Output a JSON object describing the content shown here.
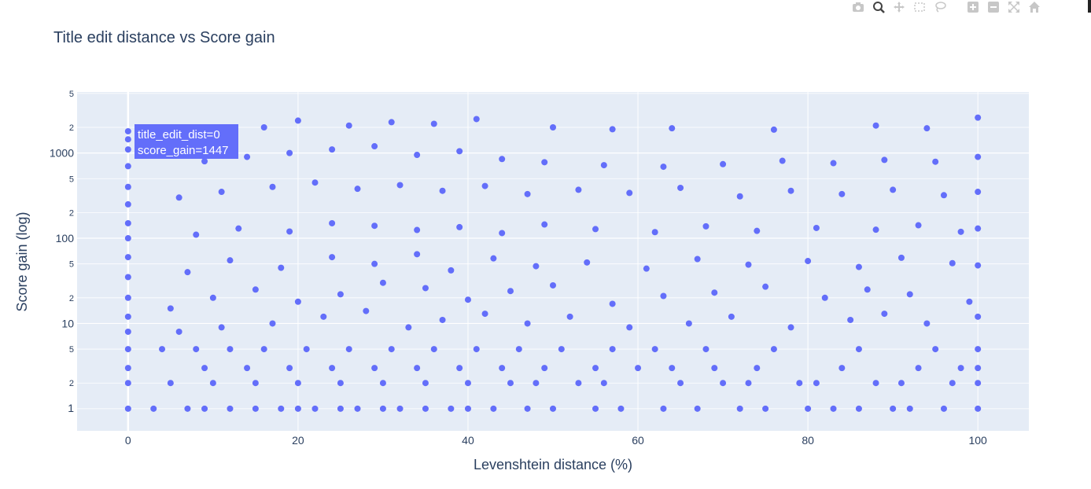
{
  "modebar": [
    "camera-icon",
    "zoom-icon",
    "pan-icon",
    "box-select-icon",
    "lasso-select-icon",
    "zoom-in-icon",
    "zoom-out-icon",
    "autoscale-icon",
    "reset-axes-icon"
  ],
  "chart_data": {
    "type": "scatter",
    "title": "Title edit distance vs Score gain",
    "xlabel": "Levenshtein distance (%)",
    "ylabel": "Score gain (log)",
    "xlim": [
      -6,
      106
    ],
    "ylim": [
      0.55,
      5200
    ],
    "yscale": "log",
    "grid": true,
    "x_ticks": [
      0,
      20,
      40,
      60,
      80,
      100
    ],
    "y_major_ticks": [
      {
        "v": 10,
        "label": "10"
      },
      {
        "v": 100,
        "label": "100"
      },
      {
        "v": 1000,
        "label": "1000"
      }
    ],
    "y_minor_ticks": [
      {
        "v": 1,
        "label": "1"
      },
      {
        "v": 2,
        "label": "2"
      },
      {
        "v": 5,
        "label": "5"
      },
      {
        "v": 20,
        "label": "2"
      },
      {
        "v": 50,
        "label": "5"
      },
      {
        "v": 200,
        "label": "2"
      },
      {
        "v": 500,
        "label": "5"
      },
      {
        "v": 2000,
        "label": "2"
      },
      {
        "v": 5000,
        "label": "5"
      }
    ],
    "marker_color": "#636efa",
    "plot_bgcolor": "#e5ecf6",
    "series": [
      {
        "values": [
          [
            0,
            1
          ],
          [
            0,
            2
          ],
          [
            0,
            3
          ],
          [
            0,
            5
          ],
          [
            0,
            8
          ],
          [
            0,
            12
          ],
          [
            0,
            20
          ],
          [
            0,
            35
          ],
          [
            0,
            60
          ],
          [
            0,
            100
          ],
          [
            0,
            150
          ],
          [
            0,
            250
          ],
          [
            0,
            400
          ],
          [
            0,
            700
          ],
          [
            0,
            1100
          ],
          [
            0,
            1447
          ],
          [
            0,
            1800
          ],
          [
            3,
            1
          ],
          [
            7,
            1
          ],
          [
            9,
            1
          ],
          [
            12,
            1
          ],
          [
            15,
            1
          ],
          [
            18,
            1
          ],
          [
            20,
            1
          ],
          [
            22,
            1
          ],
          [
            25,
            1
          ],
          [
            27,
            1
          ],
          [
            30,
            1
          ],
          [
            32,
            1
          ],
          [
            35,
            1
          ],
          [
            38,
            1
          ],
          [
            40,
            1
          ],
          [
            43,
            1
          ],
          [
            47,
            1
          ],
          [
            50,
            1
          ],
          [
            55,
            1
          ],
          [
            58,
            1
          ],
          [
            63,
            1
          ],
          [
            67,
            1
          ],
          [
            72,
            1
          ],
          [
            75,
            1
          ],
          [
            80,
            1
          ],
          [
            83,
            1
          ],
          [
            86,
            1
          ],
          [
            90,
            1
          ],
          [
            92,
            1
          ],
          [
            96,
            1
          ],
          [
            100,
            1
          ],
          [
            5,
            2
          ],
          [
            10,
            2
          ],
          [
            15,
            2
          ],
          [
            20,
            2
          ],
          [
            25,
            2
          ],
          [
            30,
            2
          ],
          [
            35,
            2
          ],
          [
            40,
            2
          ],
          [
            45,
            2
          ],
          [
            48,
            2
          ],
          [
            53,
            2
          ],
          [
            56,
            2
          ],
          [
            65,
            2
          ],
          [
            70,
            2
          ],
          [
            73,
            2
          ],
          [
            79,
            2
          ],
          [
            81,
            2
          ],
          [
            88,
            2
          ],
          [
            91,
            2
          ],
          [
            97,
            2
          ],
          [
            100,
            2
          ],
          [
            9,
            3
          ],
          [
            14,
            3
          ],
          [
            19,
            3
          ],
          [
            24,
            3
          ],
          [
            29,
            3
          ],
          [
            34,
            3
          ],
          [
            39,
            3
          ],
          [
            44,
            3
          ],
          [
            49,
            3
          ],
          [
            55,
            3
          ],
          [
            60,
            3
          ],
          [
            64,
            3
          ],
          [
            69,
            3
          ],
          [
            74,
            3
          ],
          [
            84,
            3
          ],
          [
            93,
            3
          ],
          [
            98,
            3
          ],
          [
            100,
            3
          ],
          [
            4,
            5
          ],
          [
            8,
            5
          ],
          [
            12,
            5
          ],
          [
            16,
            5
          ],
          [
            21,
            5
          ],
          [
            26,
            5
          ],
          [
            31,
            5
          ],
          [
            36,
            5
          ],
          [
            41,
            5
          ],
          [
            46,
            5
          ],
          [
            51,
            5
          ],
          [
            57,
            5
          ],
          [
            62,
            5
          ],
          [
            68,
            5
          ],
          [
            76,
            5
          ],
          [
            86,
            5
          ],
          [
            95,
            5
          ],
          [
            100,
            5
          ],
          [
            6,
            8
          ],
          [
            11,
            9
          ],
          [
            17,
            10
          ],
          [
            23,
            12
          ],
          [
            28,
            14
          ],
          [
            33,
            9
          ],
          [
            37,
            11
          ],
          [
            42,
            13
          ],
          [
            47,
            10
          ],
          [
            52,
            12
          ],
          [
            59,
            9
          ],
          [
            66,
            10
          ],
          [
            71,
            12
          ],
          [
            78,
            9
          ],
          [
            85,
            11
          ],
          [
            89,
            13
          ],
          [
            94,
            10
          ],
          [
            100,
            12
          ],
          [
            5,
            15
          ],
          [
            10,
            20
          ],
          [
            15,
            25
          ],
          [
            20,
            18
          ],
          [
            25,
            22
          ],
          [
            30,
            30
          ],
          [
            35,
            26
          ],
          [
            40,
            19
          ],
          [
            45,
            24
          ],
          [
            50,
            28
          ],
          [
            57,
            17
          ],
          [
            63,
            21
          ],
          [
            69,
            23
          ],
          [
            75,
            27
          ],
          [
            82,
            20
          ],
          [
            87,
            25
          ],
          [
            92,
            22
          ],
          [
            99,
            18
          ],
          [
            7,
            40
          ],
          [
            12,
            55
          ],
          [
            18,
            45
          ],
          [
            24,
            60
          ],
          [
            29,
            50
          ],
          [
            34,
            65
          ],
          [
            38,
            42
          ],
          [
            43,
            58
          ],
          [
            48,
            47
          ],
          [
            54,
            52
          ],
          [
            61,
            44
          ],
          [
            67,
            57
          ],
          [
            73,
            49
          ],
          [
            80,
            54
          ],
          [
            86,
            46
          ],
          [
            91,
            59
          ],
          [
            97,
            51
          ],
          [
            100,
            48
          ],
          [
            8,
            110
          ],
          [
            13,
            130
          ],
          [
            19,
            120
          ],
          [
            24,
            150
          ],
          [
            29,
            140
          ],
          [
            34,
            125
          ],
          [
            39,
            135
          ],
          [
            44,
            115
          ],
          [
            49,
            145
          ],
          [
            55,
            128
          ],
          [
            62,
            118
          ],
          [
            68,
            138
          ],
          [
            74,
            122
          ],
          [
            81,
            132
          ],
          [
            88,
            126
          ],
          [
            93,
            142
          ],
          [
            98,
            119
          ],
          [
            100,
            130
          ],
          [
            6,
            300
          ],
          [
            11,
            350
          ],
          [
            17,
            400
          ],
          [
            22,
            450
          ],
          [
            27,
            380
          ],
          [
            32,
            420
          ],
          [
            37,
            360
          ],
          [
            42,
            410
          ],
          [
            47,
            330
          ],
          [
            53,
            370
          ],
          [
            59,
            340
          ],
          [
            65,
            390
          ],
          [
            72,
            310
          ],
          [
            78,
            360
          ],
          [
            84,
            330
          ],
          [
            90,
            370
          ],
          [
            96,
            320
          ],
          [
            100,
            350
          ],
          [
            9,
            800
          ],
          [
            14,
            900
          ],
          [
            19,
            1000
          ],
          [
            24,
            1100
          ],
          [
            29,
            1200
          ],
          [
            34,
            950
          ],
          [
            39,
            1050
          ],
          [
            44,
            850
          ],
          [
            49,
            780
          ],
          [
            56,
            720
          ],
          [
            63,
            690
          ],
          [
            70,
            740
          ],
          [
            77,
            810
          ],
          [
            83,
            760
          ],
          [
            89,
            830
          ],
          [
            95,
            790
          ],
          [
            100,
            900
          ],
          [
            16,
            2000
          ],
          [
            20,
            2400
          ],
          [
            26,
            2100
          ],
          [
            31,
            2300
          ],
          [
            36,
            2200
          ],
          [
            41,
            2500
          ],
          [
            50,
            2000
          ],
          [
            57,
            1900
          ],
          [
            64,
            1950
          ],
          [
            76,
            1880
          ],
          [
            88,
            2100
          ],
          [
            94,
            1950
          ],
          [
            100,
            2600
          ]
        ]
      }
    ],
    "hover": {
      "lines": [
        "title_edit_dist=0",
        "score_gain=1447"
      ],
      "x": 0,
      "y": 1447
    }
  }
}
